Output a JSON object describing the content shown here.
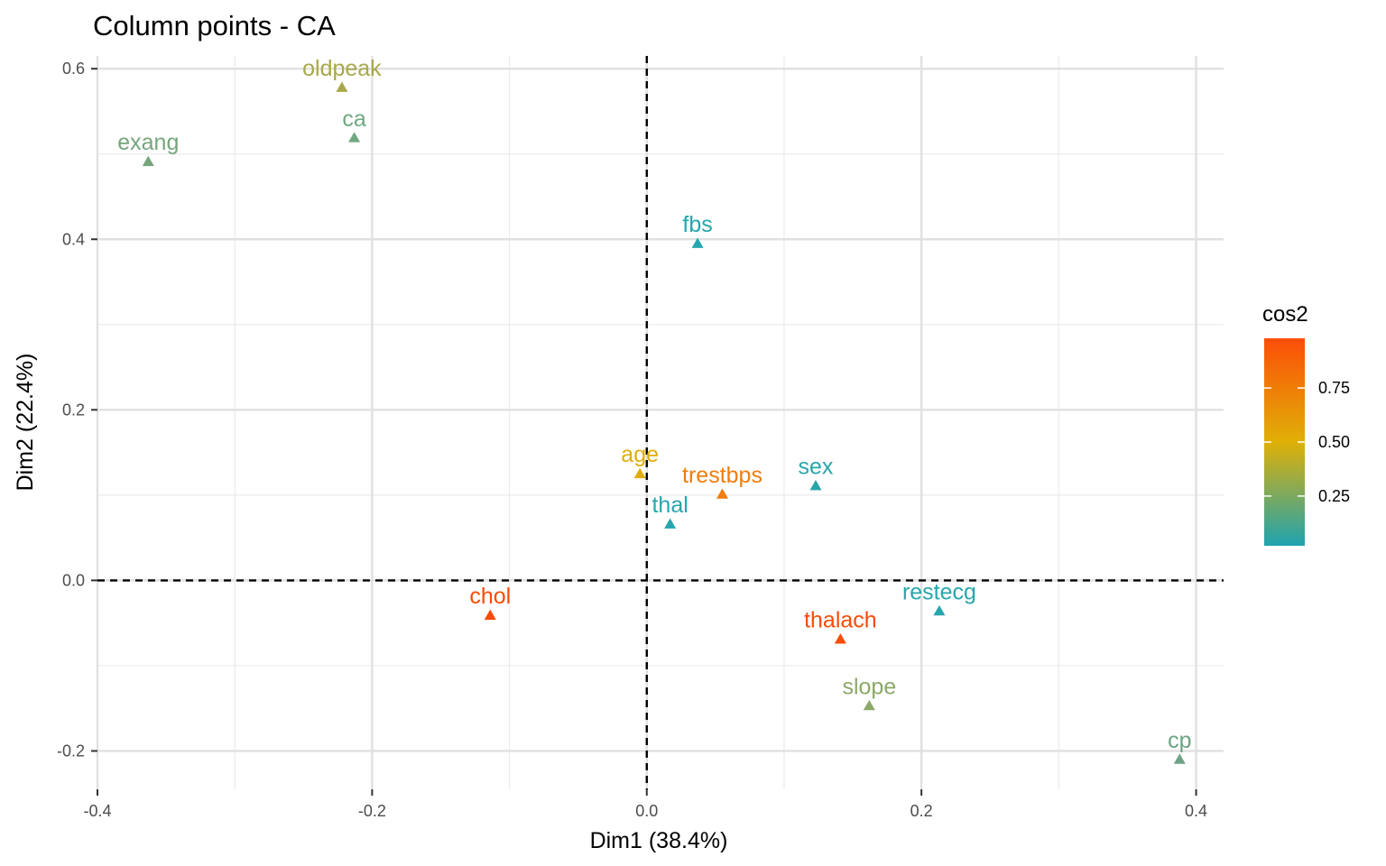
{
  "chart_data": {
    "type": "scatter",
    "title": "Column points - CA",
    "xlabel": "Dim1 (38.4%)",
    "ylabel": "Dim2 (22.4%)",
    "xlim": [
      -0.4,
      0.42
    ],
    "ylim": [
      -0.245,
      0.615
    ],
    "x_ticks": [
      -0.4,
      -0.2,
      0.0,
      0.2,
      0.4
    ],
    "x_tick_labels": [
      "-0.4",
      "-0.2",
      "0.0",
      "0.2",
      "0.4"
    ],
    "y_ticks": [
      -0.2,
      0.0,
      0.2,
      0.4,
      0.6
    ],
    "y_tick_labels": [
      "-0.2",
      "0.0",
      "0.2",
      "0.4",
      "0.6"
    ],
    "grid": true,
    "reference_lines": {
      "x": 0.0,
      "y": 0.0,
      "style": "dashed"
    },
    "legend": {
      "title": "cos2",
      "placement": "right",
      "type": "colorbar",
      "range": [
        0.02,
        0.98
      ],
      "ticks": [
        0.25,
        0.5,
        0.75
      ],
      "tick_labels": [
        "0.25",
        "0.50",
        "0.75"
      ],
      "gradient": [
        "#1fa3b0",
        "#e0b007",
        "#fc4e07"
      ]
    },
    "points": [
      {
        "label": "oldpeak",
        "x": -0.222,
        "y": 0.578,
        "cos2": 0.4,
        "color": "#a8a84a"
      },
      {
        "label": "ca",
        "x": -0.213,
        "y": 0.519,
        "cos2": 0.2,
        "color": "#70a880"
      },
      {
        "label": "exang",
        "x": -0.363,
        "y": 0.491,
        "cos2": 0.22,
        "color": "#76a57c"
      },
      {
        "label": "fbs",
        "x": 0.037,
        "y": 0.395,
        "cos2": 0.05,
        "color": "#24a6ad"
      },
      {
        "label": "age",
        "x": -0.005,
        "y": 0.125,
        "cos2": 0.55,
        "color": "#e0ad0a"
      },
      {
        "label": "trestbps",
        "x": 0.055,
        "y": 0.101,
        "cos2": 0.85,
        "color": "#f07d0d"
      },
      {
        "label": "sex",
        "x": 0.123,
        "y": 0.111,
        "cos2": 0.06,
        "color": "#29a5aa"
      },
      {
        "label": "thal",
        "x": 0.017,
        "y": 0.066,
        "cos2": 0.05,
        "color": "#25a6ad"
      },
      {
        "label": "chol",
        "x": -0.114,
        "y": -0.041,
        "cos2": 0.96,
        "color": "#fa4b07"
      },
      {
        "label": "restecg",
        "x": 0.213,
        "y": -0.036,
        "cos2": 0.06,
        "color": "#27a6ab"
      },
      {
        "label": "thalach",
        "x": 0.141,
        "y": -0.069,
        "cos2": 0.95,
        "color": "#fa4b07"
      },
      {
        "label": "slope",
        "x": 0.162,
        "y": -0.147,
        "cos2": 0.3,
        "color": "#8ca86a"
      },
      {
        "label": "cp",
        "x": 0.388,
        "y": -0.21,
        "cos2": 0.18,
        "color": "#6da384"
      }
    ]
  }
}
